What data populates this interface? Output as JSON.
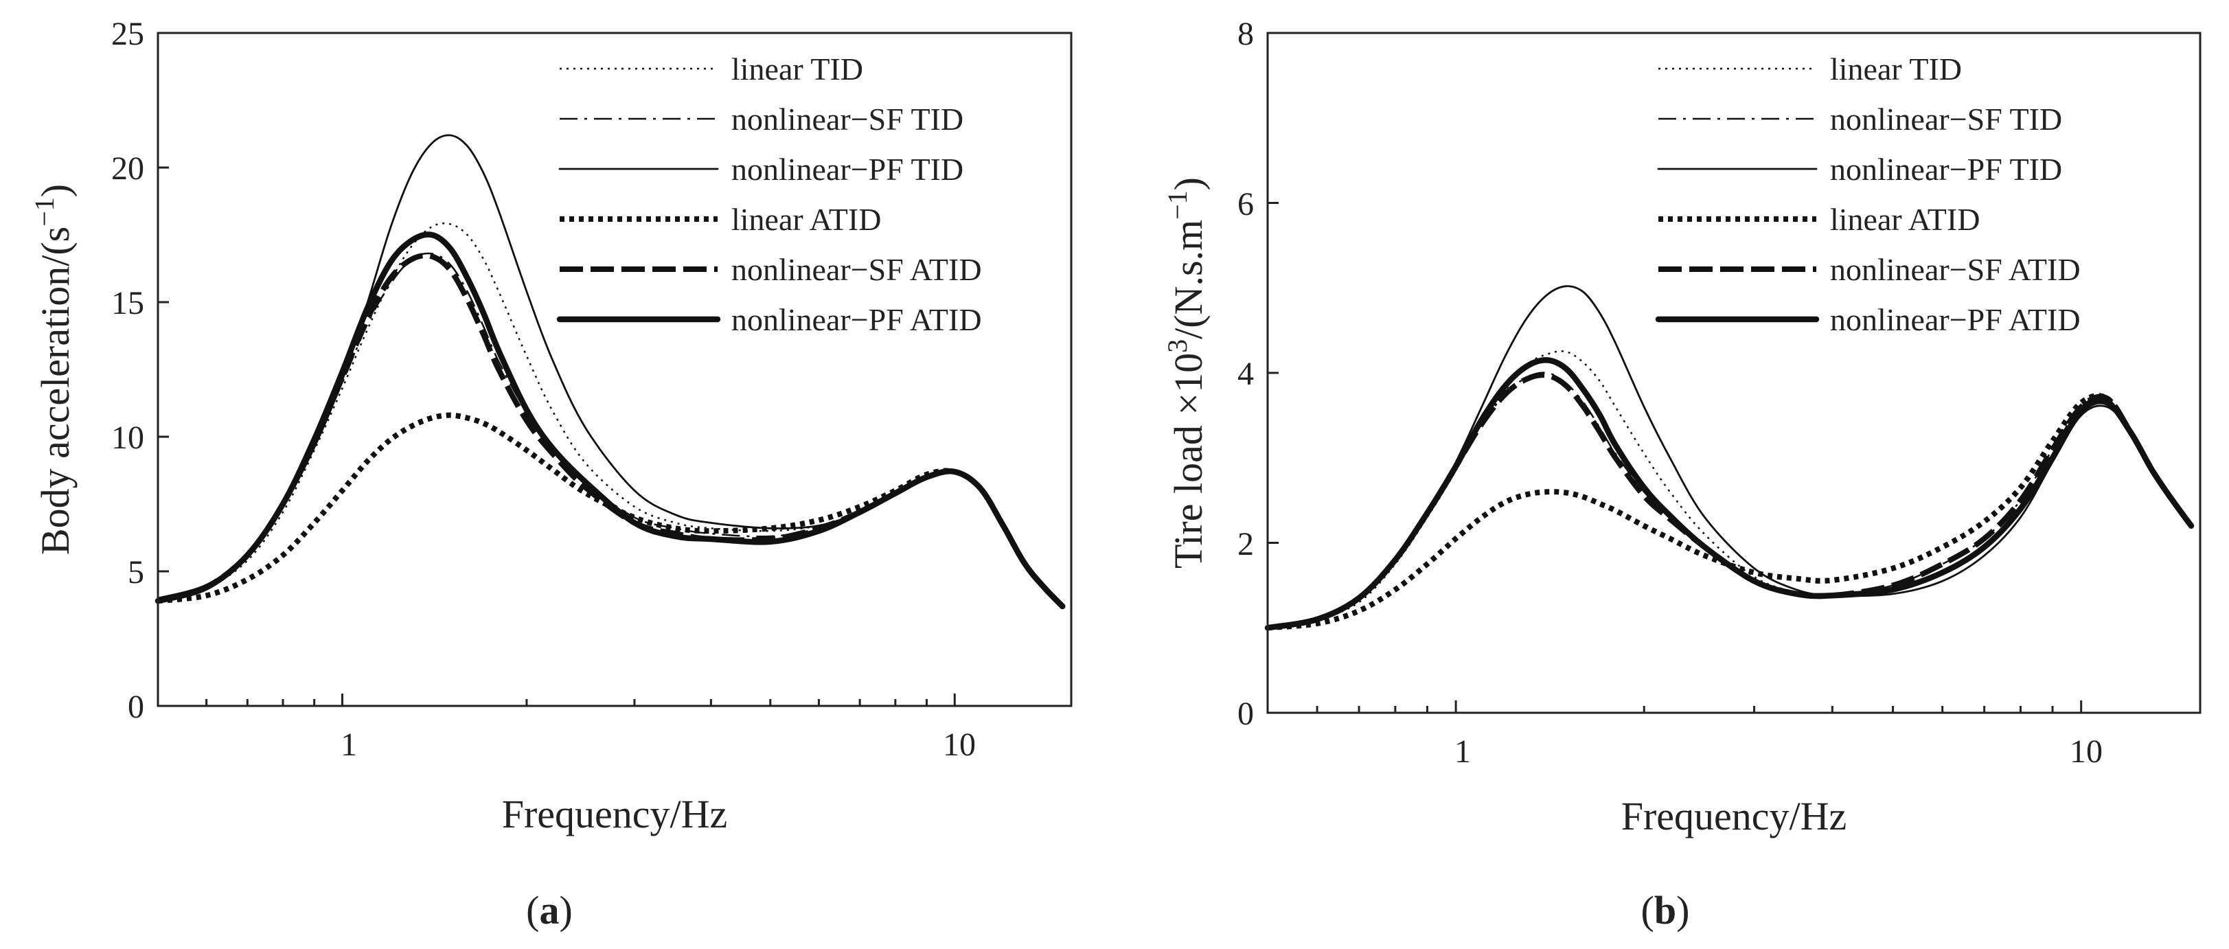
{
  "chart_data": [
    {
      "type": "line",
      "panel_label": {
        "open": "(",
        "letter": "a",
        "close": ")"
      },
      "xlabel": "Frequency/Hz",
      "ylabel": {
        "main": "Body acceleration/(s",
        "sup": "−1",
        "close": ")"
      },
      "xscale": "log",
      "xlim": [
        0.5,
        15.5
      ],
      "ylim": [
        0,
        25
      ],
      "xticks": [
        1,
        10
      ],
      "xtick_labels": [
        "1",
        "10"
      ],
      "yticks": [
        0,
        5,
        10,
        15,
        20,
        25
      ],
      "ytick_labels": [
        "0",
        "5",
        "10",
        "15",
        "20",
        "25"
      ],
      "legend_position": "top-right",
      "series": [
        {
          "name": "linear TID",
          "style": "thin-dotted",
          "x": [
            0.5,
            0.6,
            0.7,
            0.8,
            0.9,
            1.0,
            1.1,
            1.2,
            1.3,
            1.4,
            1.5,
            1.6,
            1.7,
            1.8,
            2.0,
            2.2,
            2.5,
            3.0,
            3.5,
            4.0,
            5.0,
            6.0,
            7.0,
            8.0,
            9.0,
            10.0,
            11.0,
            12.0,
            13.0,
            14.0,
            15.0
          ],
          "y": [
            4.0,
            4.4,
            5.4,
            7.2,
            9.5,
            11.8,
            14.0,
            15.8,
            17.1,
            17.8,
            17.9,
            17.5,
            16.6,
            15.4,
            13.0,
            11.0,
            9.0,
            7.4,
            6.8,
            6.6,
            6.5,
            6.7,
            7.2,
            7.9,
            8.5,
            8.7,
            8.1,
            6.7,
            5.3,
            4.4,
            3.7
          ]
        },
        {
          "name": "nonlinear−SF TID",
          "style": "thin-dashdot",
          "x": [
            0.5,
            0.6,
            0.7,
            0.8,
            0.9,
            1.0,
            1.1,
            1.2,
            1.3,
            1.4,
            1.5,
            1.6,
            1.7,
            1.8,
            2.0,
            2.2,
            2.5,
            3.0,
            3.5,
            4.0,
            5.0,
            6.0,
            7.0,
            8.0,
            9.0,
            10.0,
            11.0,
            12.0,
            13.0,
            14.0,
            15.0
          ],
          "y": [
            4.0,
            4.5,
            5.7,
            7.5,
            9.7,
            12.0,
            14.2,
            15.7,
            16.6,
            16.8,
            16.4,
            15.4,
            14.1,
            12.8,
            10.9,
            9.6,
            8.3,
            7.0,
            6.6,
            6.4,
            6.3,
            6.6,
            7.2,
            7.9,
            8.5,
            8.7,
            8.1,
            6.7,
            5.3,
            4.4,
            3.7
          ]
        },
        {
          "name": "nonlinear−PF TID",
          "style": "thin-solid",
          "x": [
            0.5,
            0.6,
            0.7,
            0.8,
            0.9,
            1.0,
            1.1,
            1.2,
            1.3,
            1.4,
            1.5,
            1.6,
            1.7,
            1.8,
            2.0,
            2.2,
            2.5,
            3.0,
            3.5,
            4.0,
            5.0,
            6.0,
            7.0,
            8.0,
            9.0,
            10.0,
            11.0,
            12.0,
            13.0,
            14.0,
            15.0
          ],
          "y": [
            4.0,
            4.5,
            5.6,
            7.4,
            9.6,
            12.1,
            15.0,
            17.8,
            19.8,
            20.9,
            21.2,
            20.8,
            19.8,
            18.4,
            15.4,
            12.9,
            10.3,
            8.0,
            7.1,
            6.8,
            6.6,
            6.7,
            7.2,
            7.9,
            8.5,
            8.7,
            8.1,
            6.7,
            5.3,
            4.4,
            3.7
          ]
        },
        {
          "name": "linear ATID",
          "style": "thick-dotted",
          "x": [
            0.5,
            0.6,
            0.7,
            0.8,
            0.9,
            1.0,
            1.1,
            1.2,
            1.3,
            1.4,
            1.5,
            1.6,
            1.7,
            1.8,
            2.0,
            2.2,
            2.5,
            3.0,
            3.5,
            4.0,
            5.0,
            6.0,
            7.0,
            8.0,
            9.0,
            10.0,
            11.0,
            12.0,
            13.0,
            14.0,
            15.0
          ],
          "y": [
            3.9,
            4.1,
            4.7,
            5.6,
            6.8,
            8.0,
            9.1,
            9.9,
            10.4,
            10.7,
            10.8,
            10.7,
            10.5,
            10.2,
            9.5,
            8.8,
            7.9,
            7.0,
            6.6,
            6.5,
            6.6,
            6.9,
            7.4,
            8.0,
            8.6,
            8.7,
            8.1,
            6.7,
            5.3,
            4.4,
            3.7
          ]
        },
        {
          "name": "nonlinear−SF ATID",
          "style": "thick-dashed",
          "x": [
            0.5,
            0.6,
            0.7,
            0.8,
            0.9,
            1.0,
            1.1,
            1.2,
            1.3,
            1.4,
            1.5,
            1.6,
            1.7,
            1.8,
            2.0,
            2.2,
            2.5,
            3.0,
            3.5,
            4.0,
            5.0,
            6.0,
            7.0,
            8.0,
            9.0,
            10.0,
            11.0,
            12.0,
            13.0,
            14.0,
            15.0
          ],
          "y": [
            3.9,
            4.4,
            5.6,
            7.5,
            9.8,
            12.2,
            14.4,
            15.9,
            16.6,
            16.7,
            16.2,
            15.1,
            13.8,
            12.5,
            10.6,
            9.4,
            8.1,
            6.8,
            6.4,
            6.2,
            6.2,
            6.6,
            7.2,
            7.9,
            8.5,
            8.7,
            8.1,
            6.7,
            5.3,
            4.4,
            3.7
          ]
        },
        {
          "name": "nonlinear−PF ATID",
          "style": "thick-solid",
          "x": [
            0.5,
            0.6,
            0.7,
            0.8,
            0.9,
            1.0,
            1.1,
            1.2,
            1.3,
            1.4,
            1.5,
            1.6,
            1.7,
            1.8,
            2.0,
            2.2,
            2.5,
            3.0,
            3.5,
            4.0,
            5.0,
            6.0,
            7.0,
            8.0,
            9.0,
            10.0,
            11.0,
            12.0,
            13.0,
            14.0,
            15.0
          ],
          "y": [
            3.9,
            4.4,
            5.6,
            7.5,
            9.9,
            12.4,
            14.8,
            16.5,
            17.3,
            17.5,
            17.0,
            15.9,
            14.6,
            13.2,
            11.0,
            9.6,
            8.3,
            6.8,
            6.3,
            6.2,
            6.1,
            6.5,
            7.2,
            7.9,
            8.5,
            8.7,
            8.1,
            6.7,
            5.3,
            4.4,
            3.7
          ]
        }
      ]
    },
    {
      "type": "line",
      "panel_label": {
        "open": "(",
        "letter": "b",
        "close": ")"
      },
      "xlabel": "Frequency/Hz",
      "ylabel": {
        "main": "Tire load ×10",
        "sup1": "3",
        "mid": "/(N.s.m",
        "sup2": "−1",
        "close": ")"
      },
      "xscale": "log",
      "xlim": [
        0.5,
        15.5
      ],
      "ylim": [
        0,
        8
      ],
      "xticks": [
        1,
        10
      ],
      "xtick_labels": [
        "1",
        "10"
      ],
      "yticks": [
        0,
        2,
        4,
        6,
        8
      ],
      "ytick_labels": [
        "0",
        "2",
        "4",
        "6",
        "8"
      ],
      "legend_position": "top-right",
      "series": [
        {
          "name": "linear TID",
          "style": "thin-dotted",
          "x": [
            0.5,
            0.6,
            0.7,
            0.8,
            0.9,
            1.0,
            1.1,
            1.2,
            1.3,
            1.4,
            1.5,
            1.6,
            1.7,
            1.8,
            2.0,
            2.2,
            2.5,
            3.0,
            3.5,
            4.0,
            5.0,
            6.0,
            7.0,
            8.0,
            9.0,
            10.0,
            11.0,
            12.0,
            13.0,
            14.0,
            15.0
          ],
          "y": [
            1.0,
            1.1,
            1.3,
            1.75,
            2.3,
            2.85,
            3.4,
            3.8,
            4.1,
            4.22,
            4.25,
            4.12,
            3.9,
            3.6,
            3.05,
            2.6,
            2.1,
            1.6,
            1.42,
            1.38,
            1.45,
            1.65,
            1.95,
            2.4,
            3.0,
            3.5,
            3.6,
            3.3,
            2.85,
            2.5,
            2.2
          ]
        },
        {
          "name": "nonlinear−SF TID",
          "style": "thin-dashdot",
          "x": [
            0.5,
            0.6,
            0.7,
            0.8,
            0.9,
            1.0,
            1.1,
            1.2,
            1.3,
            1.4,
            1.5,
            1.6,
            1.7,
            1.8,
            2.0,
            2.2,
            2.5,
            3.0,
            3.5,
            4.0,
            5.0,
            6.0,
            7.0,
            8.0,
            9.0,
            10.0,
            11.0,
            12.0,
            13.0,
            14.0,
            15.0
          ],
          "y": [
            1.0,
            1.1,
            1.35,
            1.8,
            2.35,
            2.9,
            3.4,
            3.75,
            3.95,
            4.0,
            3.88,
            3.65,
            3.35,
            3.05,
            2.6,
            2.3,
            1.95,
            1.55,
            1.4,
            1.38,
            1.5,
            1.75,
            2.05,
            2.5,
            3.1,
            3.6,
            3.7,
            3.3,
            2.85,
            2.5,
            2.2
          ]
        },
        {
          "name": "nonlinear−PF TID",
          "style": "thin-solid",
          "x": [
            0.5,
            0.6,
            0.7,
            0.8,
            0.9,
            1.0,
            1.1,
            1.2,
            1.3,
            1.4,
            1.5,
            1.6,
            1.7,
            1.8,
            2.0,
            2.2,
            2.5,
            3.0,
            3.5,
            4.0,
            5.0,
            6.0,
            7.0,
            8.0,
            9.0,
            10.0,
            11.0,
            12.0,
            13.0,
            14.0,
            15.0
          ],
          "y": [
            1.0,
            1.1,
            1.35,
            1.8,
            2.35,
            2.95,
            3.6,
            4.2,
            4.65,
            4.92,
            5.02,
            4.95,
            4.7,
            4.35,
            3.6,
            3.0,
            2.3,
            1.7,
            1.45,
            1.38,
            1.4,
            1.55,
            1.85,
            2.3,
            2.95,
            3.5,
            3.6,
            3.3,
            2.85,
            2.5,
            2.2
          ]
        },
        {
          "name": "linear ATID",
          "style": "thick-dotted",
          "x": [
            0.5,
            0.6,
            0.7,
            0.8,
            0.9,
            1.0,
            1.1,
            1.2,
            1.3,
            1.4,
            1.5,
            1.6,
            1.7,
            1.8,
            2.0,
            2.2,
            2.5,
            3.0,
            3.5,
            4.0,
            5.0,
            6.0,
            7.0,
            8.0,
            9.0,
            10.0,
            11.0,
            12.0,
            13.0,
            14.0,
            15.0
          ],
          "y": [
            1.0,
            1.05,
            1.2,
            1.45,
            1.75,
            2.05,
            2.3,
            2.48,
            2.57,
            2.6,
            2.59,
            2.54,
            2.46,
            2.38,
            2.2,
            2.05,
            1.85,
            1.65,
            1.58,
            1.56,
            1.7,
            1.95,
            2.25,
            2.65,
            3.2,
            3.65,
            3.7,
            3.3,
            2.85,
            2.5,
            2.2
          ]
        },
        {
          "name": "nonlinear−SF ATID",
          "style": "thick-dashed",
          "x": [
            0.5,
            0.6,
            0.7,
            0.8,
            0.9,
            1.0,
            1.1,
            1.2,
            1.3,
            1.4,
            1.5,
            1.6,
            1.7,
            1.8,
            2.0,
            2.2,
            2.5,
            3.0,
            3.5,
            4.0,
            5.0,
            6.0,
            7.0,
            8.0,
            9.0,
            10.0,
            11.0,
            12.0,
            13.0,
            14.0,
            15.0
          ],
          "y": [
            1.0,
            1.1,
            1.35,
            1.8,
            2.35,
            2.9,
            3.4,
            3.75,
            3.93,
            3.97,
            3.85,
            3.6,
            3.3,
            3.0,
            2.55,
            2.28,
            1.95,
            1.55,
            1.4,
            1.38,
            1.5,
            1.75,
            2.05,
            2.5,
            3.1,
            3.6,
            3.7,
            3.3,
            2.85,
            2.5,
            2.2
          ]
        },
        {
          "name": "nonlinear−PF ATID",
          "style": "thick-solid",
          "x": [
            0.5,
            0.6,
            0.7,
            0.8,
            0.9,
            1.0,
            1.1,
            1.2,
            1.3,
            1.4,
            1.5,
            1.6,
            1.7,
            1.8,
            2.0,
            2.2,
            2.5,
            3.0,
            3.5,
            4.0,
            5.0,
            6.0,
            7.0,
            8.0,
            9.0,
            10.0,
            11.0,
            12.0,
            13.0,
            14.0,
            15.0
          ],
          "y": [
            1.0,
            1.1,
            1.35,
            1.8,
            2.35,
            2.9,
            3.45,
            3.85,
            4.08,
            4.15,
            4.05,
            3.8,
            3.5,
            3.15,
            2.65,
            2.32,
            1.95,
            1.55,
            1.4,
            1.38,
            1.45,
            1.65,
            1.95,
            2.4,
            3.0,
            3.55,
            3.65,
            3.3,
            2.85,
            2.5,
            2.2
          ]
        }
      ]
    }
  ]
}
